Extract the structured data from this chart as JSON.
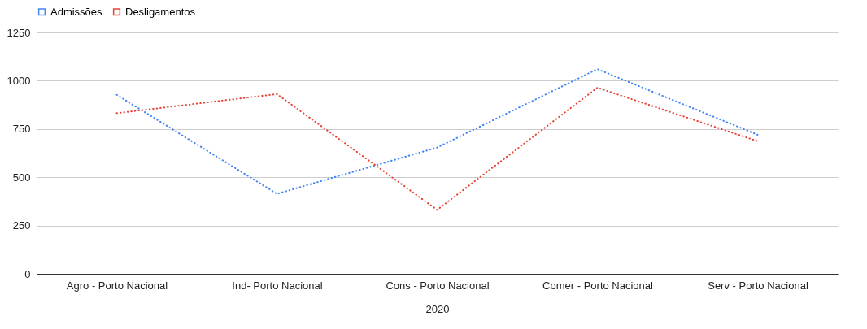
{
  "chart_data": {
    "type": "line",
    "xlabel": "2020",
    "categories": [
      "Agro - Porto Nacional",
      "Ind- Porto Nacional",
      "Cons - Porto Nacional",
      "Comer - Porto Nacional",
      "Serv - Porto Nacional"
    ],
    "series": [
      {
        "name": "Admissões",
        "color": "#4285f4",
        "values": [
          927,
          414,
          654,
          1060,
          720
        ]
      },
      {
        "name": "Desligamentos",
        "color": "#ea4335",
        "values": [
          832,
          931,
          331,
          964,
          687
        ]
      }
    ],
    "ylim": [
      0,
      1250
    ],
    "yticks": [
      0,
      250,
      500,
      750,
      1000,
      1250
    ],
    "grid": "y",
    "legend": "top",
    "line_style": "dotted",
    "marker": "none"
  }
}
